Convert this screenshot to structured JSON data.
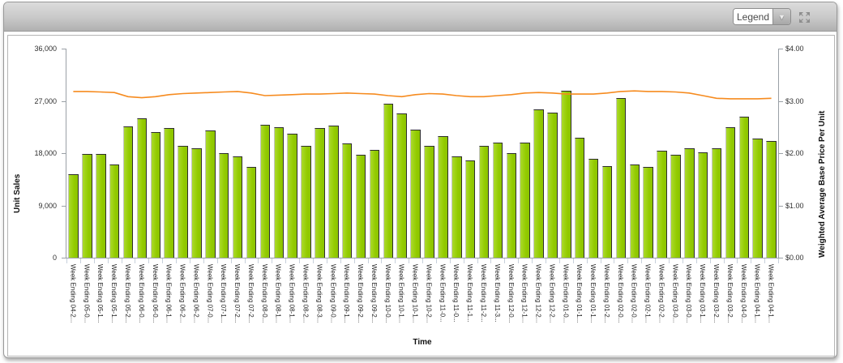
{
  "toolbar": {
    "legend_label": "Legend"
  },
  "chart_data": {
    "type": "bar",
    "xlabel": "Time",
    "y_left": {
      "label": "Unit Sales",
      "min": 0,
      "max": 36000,
      "ticks": [
        "0",
        "9,000",
        "18,000",
        "27,000",
        "36,000"
      ]
    },
    "y_right": {
      "label": "Weighted Average Base Price Per Unit",
      "min": 0,
      "max": 4,
      "ticks": [
        "$0.00",
        "$1.00",
        "$2.00",
        "$3.00",
        "$4.00"
      ]
    },
    "grid": false,
    "legend_position": "collapsed-dropdown",
    "categories": [
      "Week Ending 04-2...",
      "Week Ending 05-0...",
      "Week Ending 05-1...",
      "Week Ending 05-1...",
      "Week Ending 05-2...",
      "Week Ending 06-0...",
      "Week Ending 06-0...",
      "Week Ending 06-1...",
      "Week Ending 06-2...",
      "Week Ending 06-2...",
      "Week Ending 07-0...",
      "Week Ending 07-1...",
      "Week Ending 07-2...",
      "Week Ending 07-2...",
      "Week Ending 08-0...",
      "Week Ending 08-1...",
      "Week Ending 08-1...",
      "Week Ending 08-2...",
      "Week Ending 08-3...",
      "Week Ending 09-0...",
      "Week Ending 09-1...",
      "Week Ending 09-2...",
      "Week Ending 09-2...",
      "Week Ending 10-0...",
      "Week Ending 10-1...",
      "Week Ending 10-1...",
      "Week Ending 10-2...",
      "Week Ending 11-0...",
      "Week Ending 11-0...",
      "Week Ending 11-1...",
      "Week Ending 11-2...",
      "Week Ending 11-3...",
      "Week Ending 12-0...",
      "Week Ending 12-1...",
      "Week Ending 12-2...",
      "Week Ending 12-2...",
      "Week Ending 01-0...",
      "Week Ending 01-1...",
      "Week Ending 01-1...",
      "Week Ending 01-2...",
      "Week Ending 02-0...",
      "Week Ending 02-0...",
      "Week Ending 02-1...",
      "Week Ending 02-2...",
      "Week Ending 03-0...",
      "Week Ending 03-0...",
      "Week Ending 03-1...",
      "Week Ending 03-2...",
      "Week Ending 03-2...",
      "Week Ending 04-0...",
      "Week Ending 04-1...",
      "Week Ending 04-1..."
    ],
    "series": [
      {
        "name": "Unit Sales",
        "type": "bar",
        "axis": "left",
        "color": "#94CE0C",
        "values": [
          14400,
          17900,
          17900,
          16100,
          22600,
          24000,
          21700,
          22400,
          19200,
          18900,
          21900,
          18000,
          17400,
          15700,
          22900,
          22500,
          21300,
          19300,
          22400,
          22800,
          19700,
          17700,
          18600,
          26500,
          24900,
          22000,
          19300,
          21000,
          17400,
          16700,
          19200,
          19800,
          18000,
          19800,
          25500,
          25000,
          28700,
          20600,
          17000,
          15800,
          27500,
          16000,
          15600,
          18400,
          17700,
          18800,
          18100,
          18900,
          22500,
          24300,
          20500,
          20100
        ]
      },
      {
        "name": "Weighted Average Base Price Per Unit",
        "type": "line",
        "axis": "right",
        "color": "#F68B1F",
        "values": [
          3.18,
          3.18,
          3.17,
          3.16,
          3.08,
          3.06,
          3.08,
          3.12,
          3.14,
          3.15,
          3.16,
          3.17,
          3.18,
          3.15,
          3.1,
          3.11,
          3.12,
          3.13,
          3.13,
          3.14,
          3.15,
          3.14,
          3.13,
          3.1,
          3.08,
          3.12,
          3.14,
          3.13,
          3.1,
          3.08,
          3.08,
          3.1,
          3.12,
          3.15,
          3.16,
          3.15,
          3.13,
          3.13,
          3.13,
          3.15,
          3.18,
          3.19,
          3.18,
          3.18,
          3.17,
          3.15,
          3.1,
          3.05,
          3.04,
          3.04,
          3.04,
          3.05
        ]
      }
    ]
  },
  "colors": {
    "bar": "#94CE0C",
    "line": "#F68B1F",
    "toolbar_top": "#dcdcdc",
    "toolbar_bottom": "#b0b0b0",
    "axis": "#9aa0a6"
  }
}
